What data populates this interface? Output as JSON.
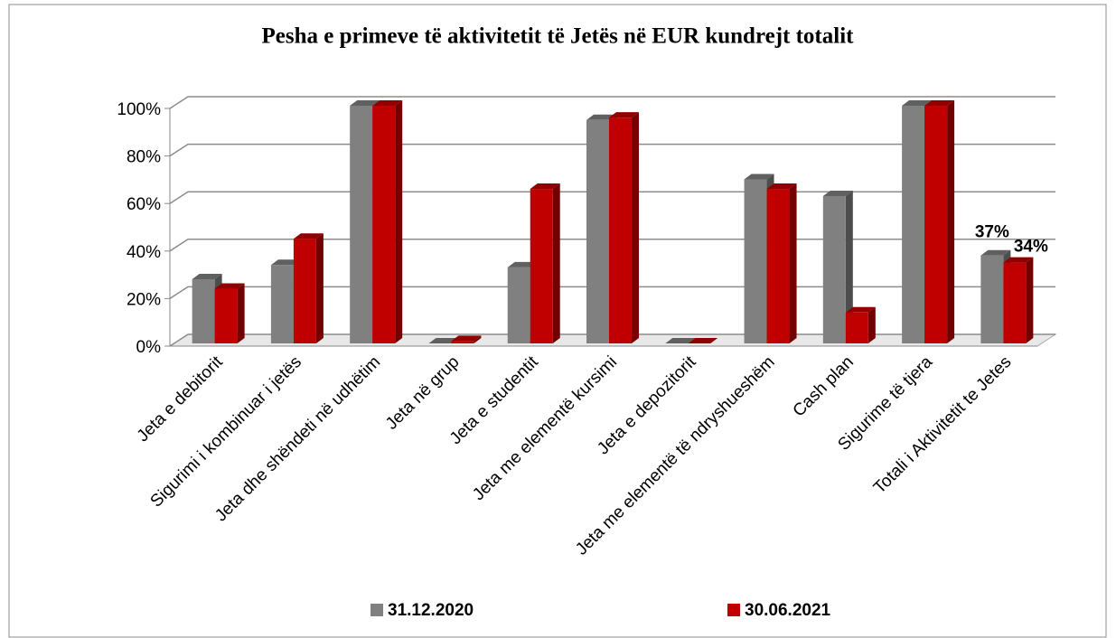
{
  "chart_data": {
    "type": "bar3d",
    "title": "Pesha e primeve të aktivitetit të Jetës në EUR kundrejt totalit",
    "categories": [
      "Jeta e debitorit",
      "Sigurimi i kombinuar i jetës",
      "Jeta dhe shëndeti në udhëtim",
      "Jeta në grup",
      "Jeta e studentit",
      "Jeta me elementë kursimi",
      "Jeta e depozitorit",
      "Jeta me elementë të ndryshueshëm",
      "Cash plan",
      "Sigurime të tjera",
      "Totali i Aktivitetit te Jetes"
    ],
    "series": [
      {
        "name": "31.12.2020",
        "color": "#808080",
        "values": [
          27,
          33,
          100,
          0,
          32,
          94,
          0,
          69,
          62,
          100,
          37
        ],
        "value_labels": [
          null,
          null,
          null,
          null,
          null,
          null,
          null,
          null,
          null,
          null,
          "37%"
        ]
      },
      {
        "name": "30.06.2021",
        "color": "#c00000",
        "values": [
          23,
          44,
          100,
          1,
          65,
          95,
          0,
          65,
          13,
          100,
          34
        ],
        "value_labels": [
          null,
          null,
          null,
          null,
          null,
          null,
          null,
          null,
          null,
          null,
          "34%"
        ]
      }
    ],
    "ylim": [
      0,
      100
    ],
    "yticks": [
      {
        "value": 0,
        "label": "0%"
      },
      {
        "value": 20,
        "label": "20%"
      },
      {
        "value": 40,
        "label": "40%"
      },
      {
        "value": 60,
        "label": "60%"
      },
      {
        "value": 80,
        "label": "80%"
      },
      {
        "value": 100,
        "label": "100%"
      }
    ],
    "grid": true,
    "legend": "bottom"
  }
}
